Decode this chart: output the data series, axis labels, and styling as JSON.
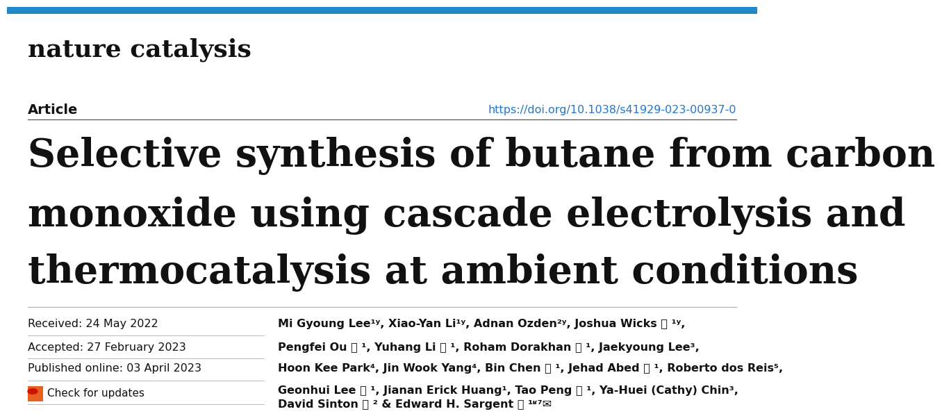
{
  "bg_color": "#ffffff",
  "top_bar_color": "#2288c8",
  "journal_name": "nature catalysis",
  "journal_fontsize": 26,
  "article_label": "Article",
  "article_fontsize": 14,
  "doi_text": "https://doi.org/10.1038/s41929-023-00937-0",
  "doi_fontsize": 11.5,
  "doi_color": "#2277cc",
  "title_line1": "Selective synthesis of butane from carbon",
  "title_line2": "monoxide using cascade electrolysis and",
  "title_line3": "thermocatalysis at ambient conditions",
  "title_fontsize": 40,
  "received_text": "Received: 24 May 2022",
  "accepted_text": "Accepted: 27 February 2023",
  "published_text": "Published online: 03 April 2023",
  "dates_fontsize": 11.5,
  "check_updates_text": "Check for updates",
  "check_updates_fontsize": 11,
  "author_line1": "Mi Gyoung Lee¹ʸ, Xiao-Yan Li¹ʸ, Adnan Ozden²ʸ, Joshua Wicks ⓘ ¹ʸ,",
  "author_line2": "Pengfei Ou ⓘ ¹, Yuhang Li ⓘ ¹, Roham Dorakhan ⓘ ¹, Jaekyoung Lee³,",
  "author_line3": "Hoon Kee Park⁴, Jin Wook Yang⁴, Bin Chen ⓘ ¹, Jehad Abed ⓘ ¹, Roberto dos Reis⁵,",
  "author_line4": "Geonhui Lee ⓘ ¹, Jianan Erick Huang¹, Tao Peng ⓘ ¹, Ya-Huei (Cathy) Chin³,",
  "author_line5": "David Sinton ⓘ ² & Edward H. Sargent ⓘ ¹ʶ⁷✉",
  "author_fontsize": 11.5
}
